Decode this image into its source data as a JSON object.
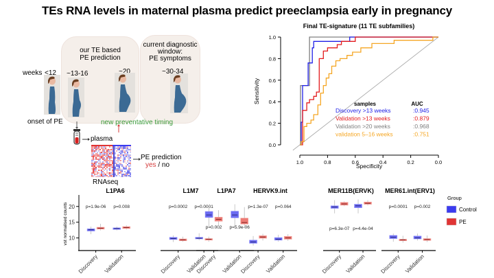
{
  "title": "TEs RNA levels in maternal plasma predict preeclampsia early in pregnancy",
  "timeline": {
    "weeks_label": "weeks",
    "stages": [
      {
        "label": "<12",
        "caption": "onset of PE"
      },
      {
        "label": "~13-16"
      },
      {
        "label": "~20"
      },
      {
        "label": "~30-34"
      }
    ],
    "panel_te_prediction": "our TE based\nPE prediction",
    "panel_te_line1": "our TE based",
    "panel_te_line2": "PE prediction",
    "panel_current_line1": "current diagnostic",
    "panel_current_line2": "window:",
    "panel_current_line3": "PE symptoms",
    "new_timing": "new preventative timing",
    "plasma": "plasma",
    "rnaseq": "RNAseq",
    "pe_prediction": "PE prediction",
    "yes": "yes",
    "slash_no": " / no",
    "colors": {
      "green": "#3a9a3a",
      "red_text": "#d43a3a",
      "dress": "#3b6a94",
      "skin": "#e9b9a2",
      "hair": "#6b3f22"
    }
  },
  "chart_data": [
    {
      "type": "line",
      "title": "Final TE-signature (11 TE subfamilies)",
      "xlabel": "Specificity",
      "ylabel": "Sensitivity",
      "xlim": [
        1.0,
        0.0
      ],
      "ylim": [
        0.0,
        1.0
      ],
      "x_ticks": [
        "1.0",
        "0.8",
        "0.6",
        "0.4",
        "0.2",
        "0.0"
      ],
      "y_ticks": [
        "0.0",
        "0.2",
        "0.4",
        "0.6",
        "0.8",
        "1.0"
      ],
      "legend_header": {
        "samples": "samples",
        "auc": "AUC"
      },
      "legend_position": "bottom-right",
      "diagonal": true,
      "series": [
        {
          "name": "Discovery >13 weeks",
          "auc": ":0.945",
          "color": "#1f1fe6",
          "points": [
            [
              1.0,
              0.0
            ],
            [
              0.99,
              0.0
            ],
            [
              0.99,
              0.21
            ],
            [
              0.98,
              0.21
            ],
            [
              0.98,
              0.55
            ],
            [
              0.94,
              0.55
            ],
            [
              0.94,
              0.76
            ],
            [
              0.91,
              0.76
            ],
            [
              0.91,
              0.9
            ],
            [
              0.9,
              0.9
            ],
            [
              0.9,
              0.96
            ],
            [
              0.76,
              0.96
            ],
            [
              0.64,
              0.96
            ],
            [
              0.64,
              1.0
            ],
            [
              0.0,
              1.0
            ]
          ]
        },
        {
          "name": "Validation >13 weeks",
          "auc": ":0.879",
          "color": "#e31a1c",
          "points": [
            [
              1.0,
              0.0
            ],
            [
              0.98,
              0.0
            ],
            [
              0.98,
              0.32
            ],
            [
              0.95,
              0.32
            ],
            [
              0.95,
              0.39
            ],
            [
              0.93,
              0.39
            ],
            [
              0.93,
              0.42
            ],
            [
              0.9,
              0.42
            ],
            [
              0.9,
              0.45
            ],
            [
              0.88,
              0.45
            ],
            [
              0.88,
              0.49
            ],
            [
              0.86,
              0.49
            ],
            [
              0.86,
              0.8
            ],
            [
              0.83,
              0.8
            ],
            [
              0.83,
              0.87
            ],
            [
              0.8,
              0.87
            ],
            [
              0.8,
              0.9
            ],
            [
              0.73,
              0.9
            ],
            [
              0.73,
              0.93
            ],
            [
              0.7,
              0.93
            ],
            [
              0.7,
              0.96
            ],
            [
              0.6,
              0.96
            ],
            [
              0.6,
              1.0
            ],
            [
              0.0,
              1.0
            ]
          ]
        },
        {
          "name": "Validation >20 weeks",
          "auc": ":0.968",
          "color": "#7f7f7f",
          "points": [
            [
              1.0,
              0.0
            ],
            [
              0.995,
              0.0
            ],
            [
              0.995,
              0.55
            ],
            [
              0.93,
              0.55
            ],
            [
              0.93,
              1.0
            ],
            [
              0.0,
              1.0
            ]
          ]
        },
        {
          "name": "validation 5–16 weeks",
          "auc": ":0.751",
          "color": "#f5a623",
          "points": [
            [
              1.0,
              0.0
            ],
            [
              0.99,
              0.0
            ],
            [
              0.99,
              0.03
            ],
            [
              0.97,
              0.03
            ],
            [
              0.97,
              0.17
            ],
            [
              0.95,
              0.17
            ],
            [
              0.95,
              0.2
            ],
            [
              0.92,
              0.2
            ],
            [
              0.92,
              0.23
            ],
            [
              0.9,
              0.23
            ],
            [
              0.9,
              0.28
            ],
            [
              0.87,
              0.28
            ],
            [
              0.87,
              0.37
            ],
            [
              0.85,
              0.37
            ],
            [
              0.85,
              0.48
            ],
            [
              0.83,
              0.48
            ],
            [
              0.83,
              0.55
            ],
            [
              0.81,
              0.55
            ],
            [
              0.81,
              0.62
            ],
            [
              0.79,
              0.62
            ],
            [
              0.79,
              0.66
            ],
            [
              0.77,
              0.66
            ],
            [
              0.77,
              0.73
            ],
            [
              0.74,
              0.73
            ],
            [
              0.74,
              0.78
            ],
            [
              0.71,
              0.78
            ],
            [
              0.71,
              0.8
            ],
            [
              0.66,
              0.8
            ],
            [
              0.66,
              0.83
            ],
            [
              0.62,
              0.83
            ],
            [
              0.62,
              0.86
            ],
            [
              0.56,
              0.86
            ],
            [
              0.56,
              0.9
            ],
            [
              0.48,
              0.9
            ],
            [
              0.48,
              0.94
            ],
            [
              0.32,
              0.94
            ],
            [
              0.32,
              0.97
            ],
            [
              0.04,
              0.97
            ],
            [
              0.04,
              1.0
            ],
            [
              0.0,
              1.0
            ]
          ]
        }
      ]
    },
    {
      "type": "box",
      "ylabel": "vst normalised counts",
      "ylim": [
        6,
        23
      ],
      "y_ticks": [
        10,
        15,
        20
      ],
      "categories": [
        "Discovery",
        "Validation"
      ],
      "groups": [
        {
          "name": "Control",
          "color": "#3b3bef"
        },
        {
          "name": "PE",
          "color": "#e03434"
        }
      ],
      "legend_title": "Group",
      "legend_position": "right",
      "panels": [
        {
          "name": "L1PA6",
          "pvalues": [
            "p=1.9e-06",
            "p=0.008"
          ],
          "p_pos": "top",
          "boxes": [
            [
              [
                11.2,
                12.2,
                12.6,
                12.9,
                13.6
              ],
              [
                12.4,
                12.8,
                13.1,
                13.4,
                14.5
              ]
            ],
            [
              [
                12.4,
                12.7,
                13.0,
                13.2,
                13.6
              ],
              [
                12.7,
                13.0,
                13.3,
                13.6,
                14.0
              ]
            ]
          ]
        },
        {
          "name": "L1M7",
          "pvalues": [
            "p=0.0002",
            "p=0.0001"
          ],
          "p_pos": "top",
          "boxes": [
            [
              [
                8.7,
                9.5,
                9.8,
                10.2,
                10.8
              ],
              [
                8.8,
                9.1,
                9.4,
                9.7,
                10.4
              ]
            ],
            [
              [
                9.3,
                9.7,
                9.9,
                10.2,
                11.5
              ],
              [
                8.8,
                9.3,
                9.6,
                9.8,
                10.4
              ]
            ]
          ]
        },
        {
          "name": "L1PA7",
          "pvalues": [
            "p=0.002",
            "p=5.9e-06"
          ],
          "p_pos": "middle",
          "boxes": [
            [
              [
                13.5,
                16.5,
                17.3,
                18.4,
                20.4
              ],
              [
                13.8,
                15.3,
                15.9,
                16.6,
                18.8
              ]
            ],
            [
              [
                13.8,
                16.4,
                17.3,
                18.5,
                20.7
              ],
              [
                13.1,
                14.4,
                14.9,
                16.3,
                19.8
              ]
            ]
          ]
        },
        {
          "name": "HERVK9.int",
          "pvalues": [
            "p=1.3e-07",
            "p=0.064"
          ],
          "p_pos": "top",
          "boxes": [
            [
              [
                7.6,
                8.3,
                8.7,
                9.3,
                10.6
              ],
              [
                9.2,
                9.9,
                10.3,
                10.7,
                11.3
              ]
            ],
            [
              [
                8.8,
                9.3,
                9.6,
                10.1,
                11.0
              ],
              [
                9.1,
                9.6,
                10.0,
                10.5,
                11.2
              ]
            ]
          ]
        },
        {
          "name": "MER11B(ERVK)",
          "pvalues": [
            "p=6.3e-07",
            "p=4.4e-04"
          ],
          "p_pos": "middle",
          "boxes": [
            [
              [
                17.8,
                19.4,
                19.8,
                20.2,
                22.0
              ],
              [
                20.1,
                20.4,
                20.8,
                21.3,
                21.6
              ]
            ],
            [
              [
                17.8,
                19.6,
                20.2,
                20.7,
                22.2
              ],
              [
                20.3,
                20.7,
                21.0,
                21.4,
                22.0
              ]
            ]
          ]
        },
        {
          "name": "MER61.int(ERV1)",
          "pvalues": [
            "p=0.0001",
            "p=0.002"
          ],
          "p_pos": "top",
          "boxes": [
            [
              [
                8.8,
                9.8,
                10.2,
                10.8,
                11.4
              ],
              [
                8.5,
                9.1,
                9.4,
                9.6,
                10.7
              ]
            ],
            [
              [
                9.2,
                9.7,
                10.0,
                10.6,
                11.4
              ],
              [
                8.7,
                9.2,
                9.5,
                9.8,
                10.8
              ]
            ]
          ]
        }
      ]
    }
  ]
}
